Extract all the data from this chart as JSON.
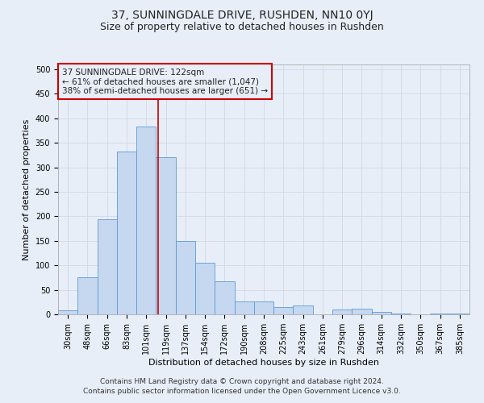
{
  "title": "37, SUNNINGDALE DRIVE, RUSHDEN, NN10 0YJ",
  "subtitle": "Size of property relative to detached houses in Rushden",
  "xlabel": "Distribution of detached houses by size in Rushden",
  "ylabel": "Number of detached properties",
  "categories": [
    "30sqm",
    "48sqm",
    "66sqm",
    "83sqm",
    "101sqm",
    "119sqm",
    "137sqm",
    "154sqm",
    "172sqm",
    "190sqm",
    "208sqm",
    "225sqm",
    "243sqm",
    "261sqm",
    "279sqm",
    "296sqm",
    "314sqm",
    "332sqm",
    "350sqm",
    "367sqm",
    "385sqm"
  ],
  "values": [
    8,
    75,
    194,
    333,
    383,
    320,
    150,
    105,
    68,
    27,
    27,
    15,
    18,
    0,
    10,
    12,
    5,
    2,
    0,
    2,
    1
  ],
  "bar_color": "#c5d8f0",
  "bar_edge_color": "#5b9bd5",
  "grid_color": "#d0d8e8",
  "background_color": "#e8eef7",
  "vline_x": 4.6,
  "vline_color": "#cc0000",
  "annotation_line1": "37 SUNNINGDALE DRIVE: 122sqm",
  "annotation_line2": "← 61% of detached houses are smaller (1,047)",
  "annotation_line3": "38% of semi-detached houses are larger (651) →",
  "footer_line1": "Contains HM Land Registry data © Crown copyright and database right 2024.",
  "footer_line2": "Contains public sector information licensed under the Open Government Licence v3.0.",
  "ylim": [
    0,
    510
  ],
  "yticks": [
    0,
    50,
    100,
    150,
    200,
    250,
    300,
    350,
    400,
    450,
    500
  ],
  "title_fontsize": 10,
  "subtitle_fontsize": 9,
  "axis_label_fontsize": 8,
  "tick_fontsize": 7,
  "annotation_fontsize": 7.5,
  "footer_fontsize": 6.5
}
